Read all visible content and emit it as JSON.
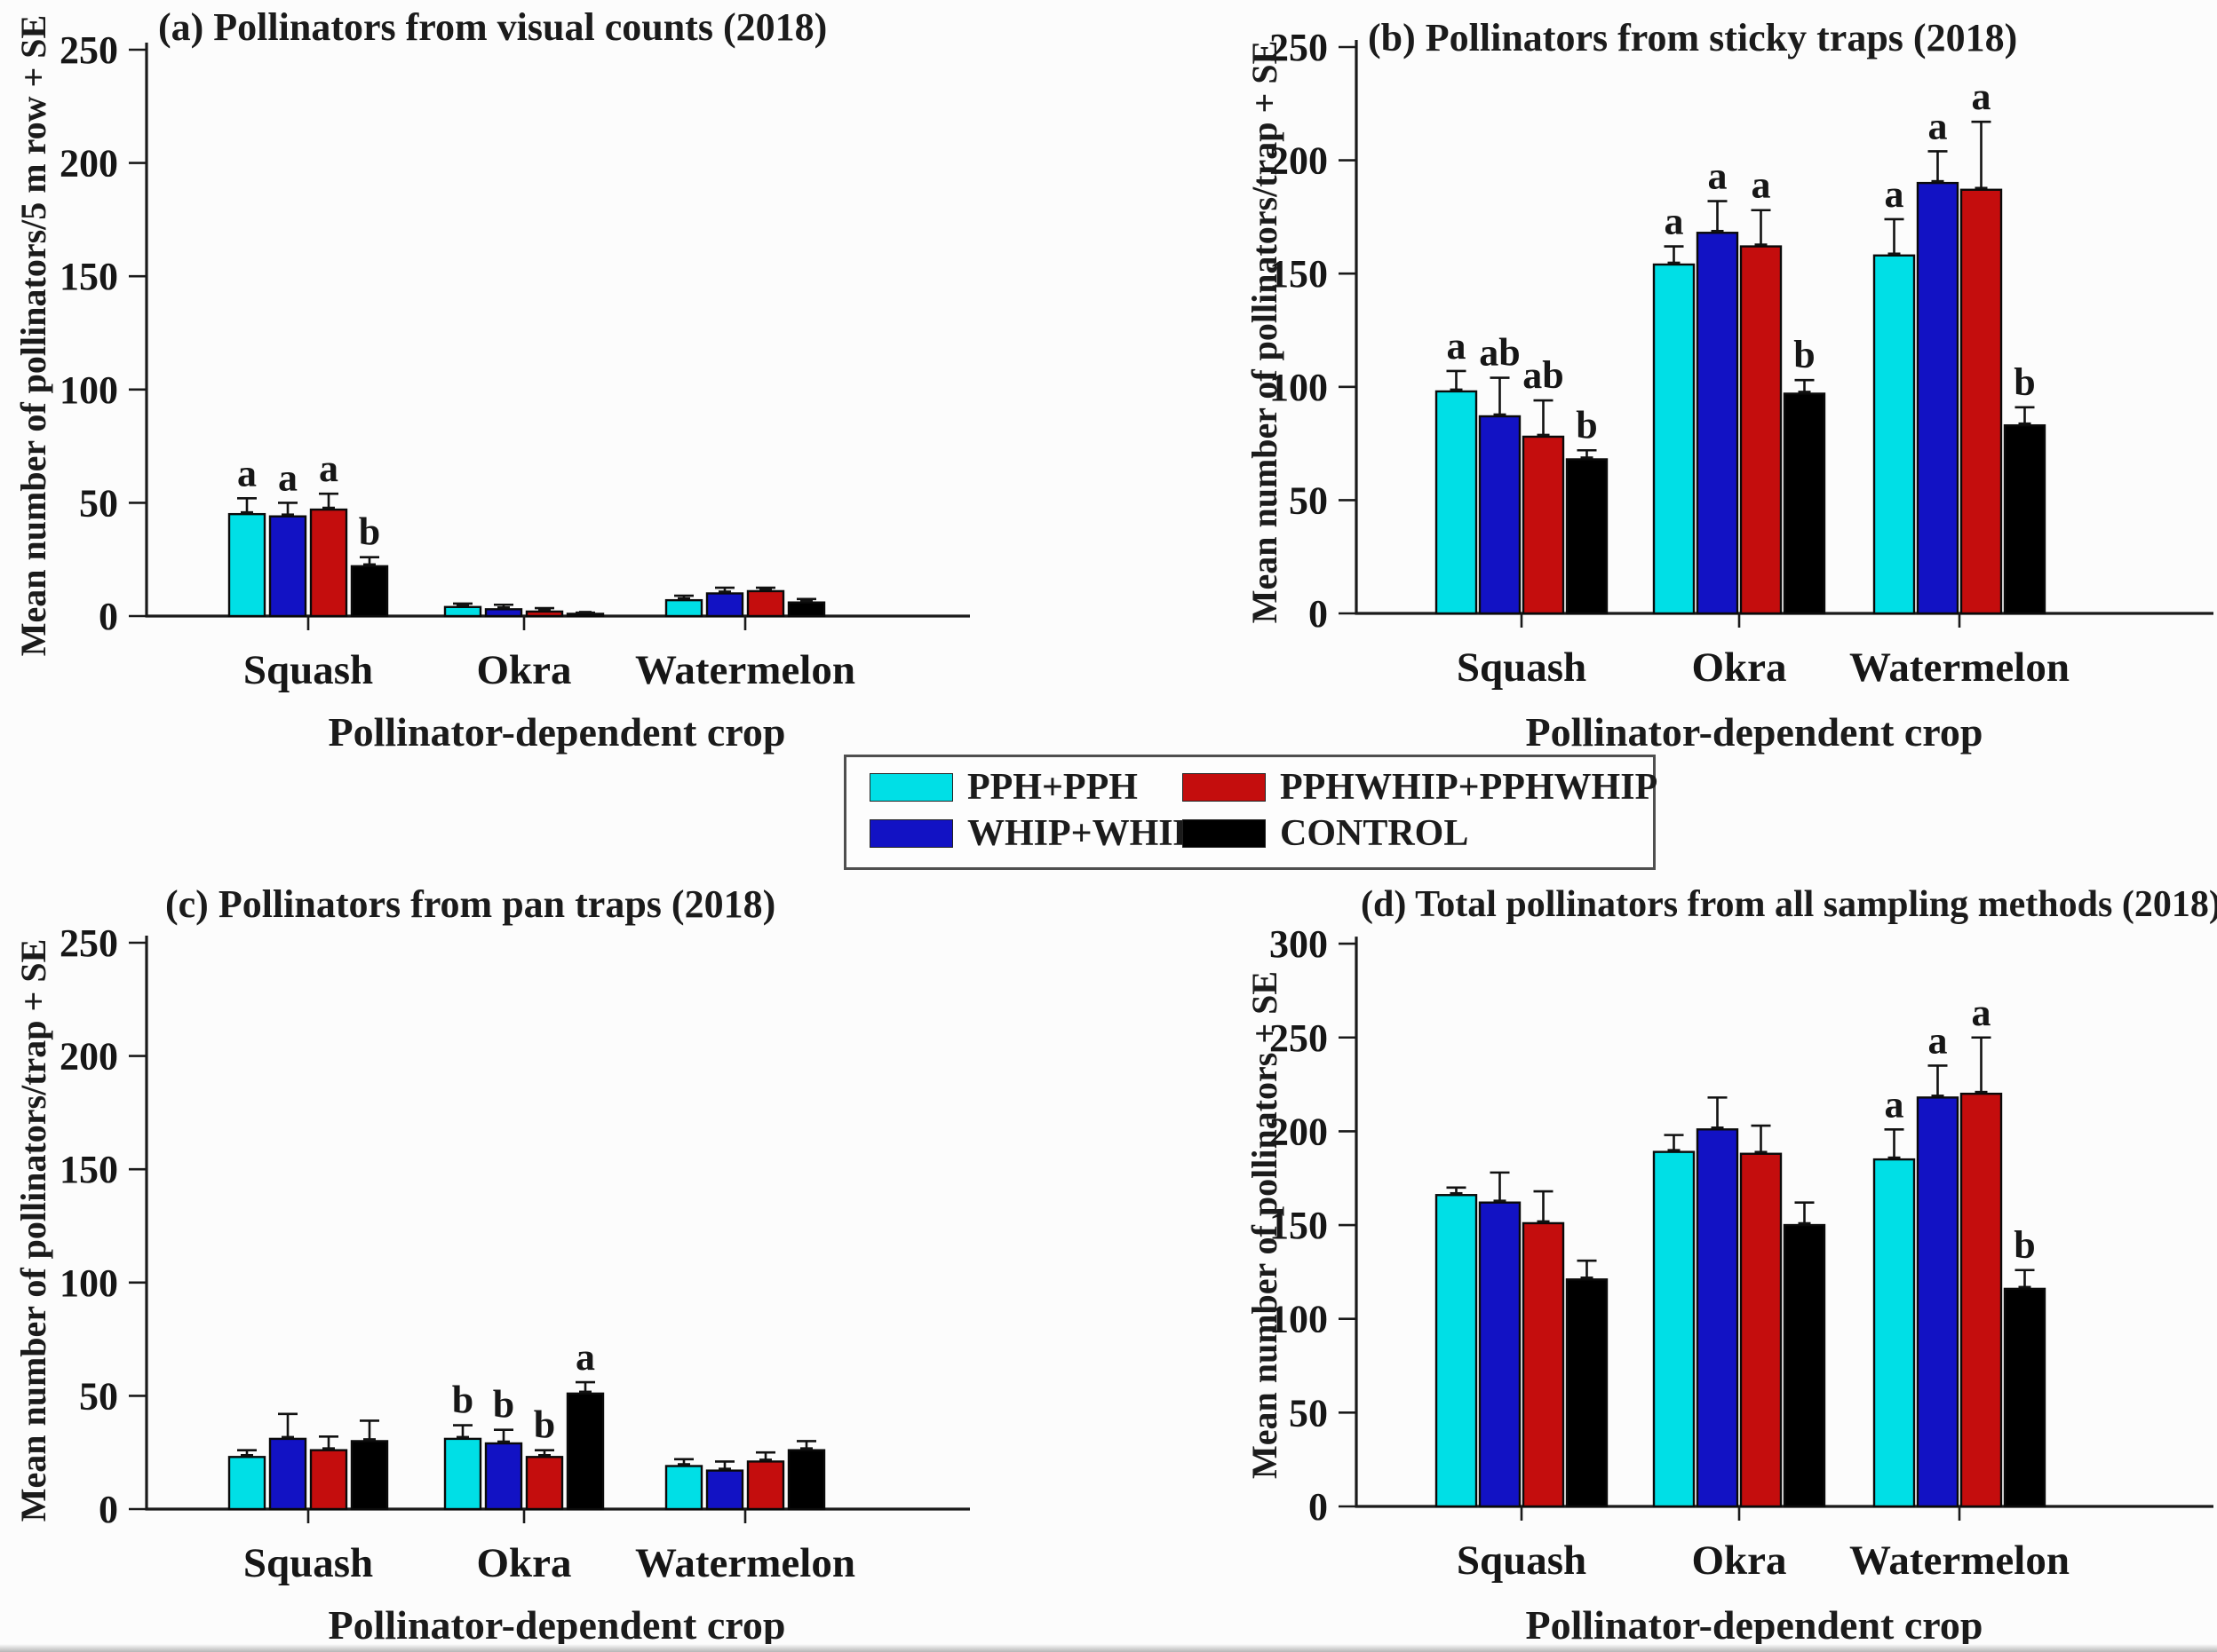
{
  "figure": {
    "background": "#fcfcfc"
  },
  "legend": {
    "items": [
      {
        "label": "PPH+PPH",
        "color": "#00dfe6"
      },
      {
        "label": "WHIP+WHIP",
        "color": "#1212c4"
      },
      {
        "label": "PPHWHIP+PPHWHIP",
        "color": "#c40d0d"
      },
      {
        "label": "CONTROL",
        "color": "#000000"
      }
    ]
  },
  "chart_data": [
    {
      "panel": "a",
      "type": "bar",
      "title": "(a) Pollinators from visual counts (2018)",
      "ylabel": "Mean number of pollinators/5 m row + SE",
      "xlabel": "Pollinator-dependent crop",
      "categories": [
        "Squash",
        "Okra",
        "Watermelon"
      ],
      "ylim": [
        0,
        250
      ],
      "ytick_step": 50,
      "grid": false,
      "series": [
        {
          "name": "PPH+PPH",
          "color": "#00dfe6",
          "values": [
            45,
            4,
            7
          ],
          "se": [
            7,
            1.5,
            2
          ],
          "letters": [
            "a",
            "",
            ""
          ]
        },
        {
          "name": "WHIP+WHIP",
          "color": "#1212c4",
          "values": [
            44,
            3,
            10
          ],
          "se": [
            6,
            2,
            2.5
          ],
          "letters": [
            "a",
            "",
            ""
          ]
        },
        {
          "name": "PPHWHIP+PPHWHIP",
          "color": "#c40d0d",
          "values": [
            47,
            2,
            11
          ],
          "se": [
            7,
            1.5,
            1.5
          ],
          "letters": [
            "a",
            "",
            ""
          ]
        },
        {
          "name": "CONTROL",
          "color": "#000000",
          "values": [
            22,
            1,
            6
          ],
          "se": [
            4,
            0.5,
            1.5
          ],
          "letters": [
            "b",
            "",
            ""
          ]
        }
      ]
    },
    {
      "panel": "b",
      "type": "bar",
      "title": "(b) Pollinators from sticky traps (2018)",
      "ylabel": "Mean number of pollinators/trap + SE",
      "xlabel": "Pollinator-dependent crop",
      "categories": [
        "Squash",
        "Okra",
        "Watermelon"
      ],
      "ylim": [
        0,
        250
      ],
      "ytick_step": 50,
      "grid": false,
      "series": [
        {
          "name": "PPH+PPH",
          "color": "#00dfe6",
          "values": [
            98,
            154,
            158
          ],
          "se": [
            9,
            8,
            16
          ],
          "letters": [
            "a",
            "a",
            "a"
          ]
        },
        {
          "name": "WHIP+WHIP",
          "color": "#1212c4",
          "values": [
            87,
            168,
            190
          ],
          "se": [
            17,
            14,
            14
          ],
          "letters": [
            "ab",
            "a",
            "a"
          ]
        },
        {
          "name": "PPHWHIP+PPHWHIP",
          "color": "#c40d0d",
          "values": [
            78,
            162,
            187
          ],
          "se": [
            16,
            16,
            30
          ],
          "letters": [
            "ab",
            "a",
            "a"
          ]
        },
        {
          "name": "CONTROL",
          "color": "#000000",
          "values": [
            68,
            97,
            83
          ],
          "se": [
            4,
            6,
            8
          ],
          "letters": [
            "b",
            "b",
            "b"
          ]
        }
      ]
    },
    {
      "panel": "c",
      "type": "bar",
      "title": "(c) Pollinators from pan traps (2018)",
      "ylabel": "Mean number of pollinators/trap + SE",
      "xlabel": "Pollinator-dependent crop",
      "categories": [
        "Squash",
        "Okra",
        "Watermelon"
      ],
      "ylim": [
        0,
        250
      ],
      "ytick_step": 50,
      "grid": false,
      "series": [
        {
          "name": "PPH+PPH",
          "color": "#00dfe6",
          "values": [
            23,
            31,
            19
          ],
          "se": [
            3,
            6,
            3
          ],
          "letters": [
            "",
            "b",
            ""
          ]
        },
        {
          "name": "WHIP+WHIP",
          "color": "#1212c4",
          "values": [
            31,
            29,
            17
          ],
          "se": [
            11,
            6,
            4
          ],
          "letters": [
            "",
            "b",
            ""
          ]
        },
        {
          "name": "PPHWHIP+PPHWHIP",
          "color": "#c40d0d",
          "values": [
            26,
            23,
            21
          ],
          "se": [
            6,
            3,
            4
          ],
          "letters": [
            "",
            "b",
            ""
          ]
        },
        {
          "name": "CONTROL",
          "color": "#000000",
          "values": [
            30,
            51,
            26
          ],
          "se": [
            9,
            5,
            4
          ],
          "letters": [
            "",
            "a",
            ""
          ]
        }
      ]
    },
    {
      "panel": "d",
      "type": "bar",
      "title": "(d) Total pollinators from all sampling methods (2018)",
      "ylabel": "Mean number of pollinators + SE",
      "xlabel": "Pollinator-dependent crop",
      "categories": [
        "Squash",
        "Okra",
        "Watermelon"
      ],
      "ylim": [
        0,
        300
      ],
      "ytick_step": 50,
      "grid": false,
      "series": [
        {
          "name": "PPH+PPH",
          "color": "#00dfe6",
          "values": [
            166,
            189,
            185
          ],
          "se": [
            4,
            9,
            16
          ],
          "letters": [
            "",
            "",
            "a"
          ]
        },
        {
          "name": "WHIP+WHIP",
          "color": "#1212c4",
          "values": [
            162,
            201,
            218
          ],
          "se": [
            16,
            17,
            17
          ],
          "letters": [
            "",
            "",
            "a"
          ]
        },
        {
          "name": "PPHWHIP+PPHWHIP",
          "color": "#c40d0d",
          "values": [
            151,
            188,
            220
          ],
          "se": [
            17,
            15,
            30
          ],
          "letters": [
            "",
            "",
            "a"
          ]
        },
        {
          "name": "CONTROL",
          "color": "#000000",
          "values": [
            121,
            150,
            116
          ],
          "se": [
            10,
            12,
            10
          ],
          "letters": [
            "",
            "",
            "b"
          ]
        }
      ]
    }
  ]
}
